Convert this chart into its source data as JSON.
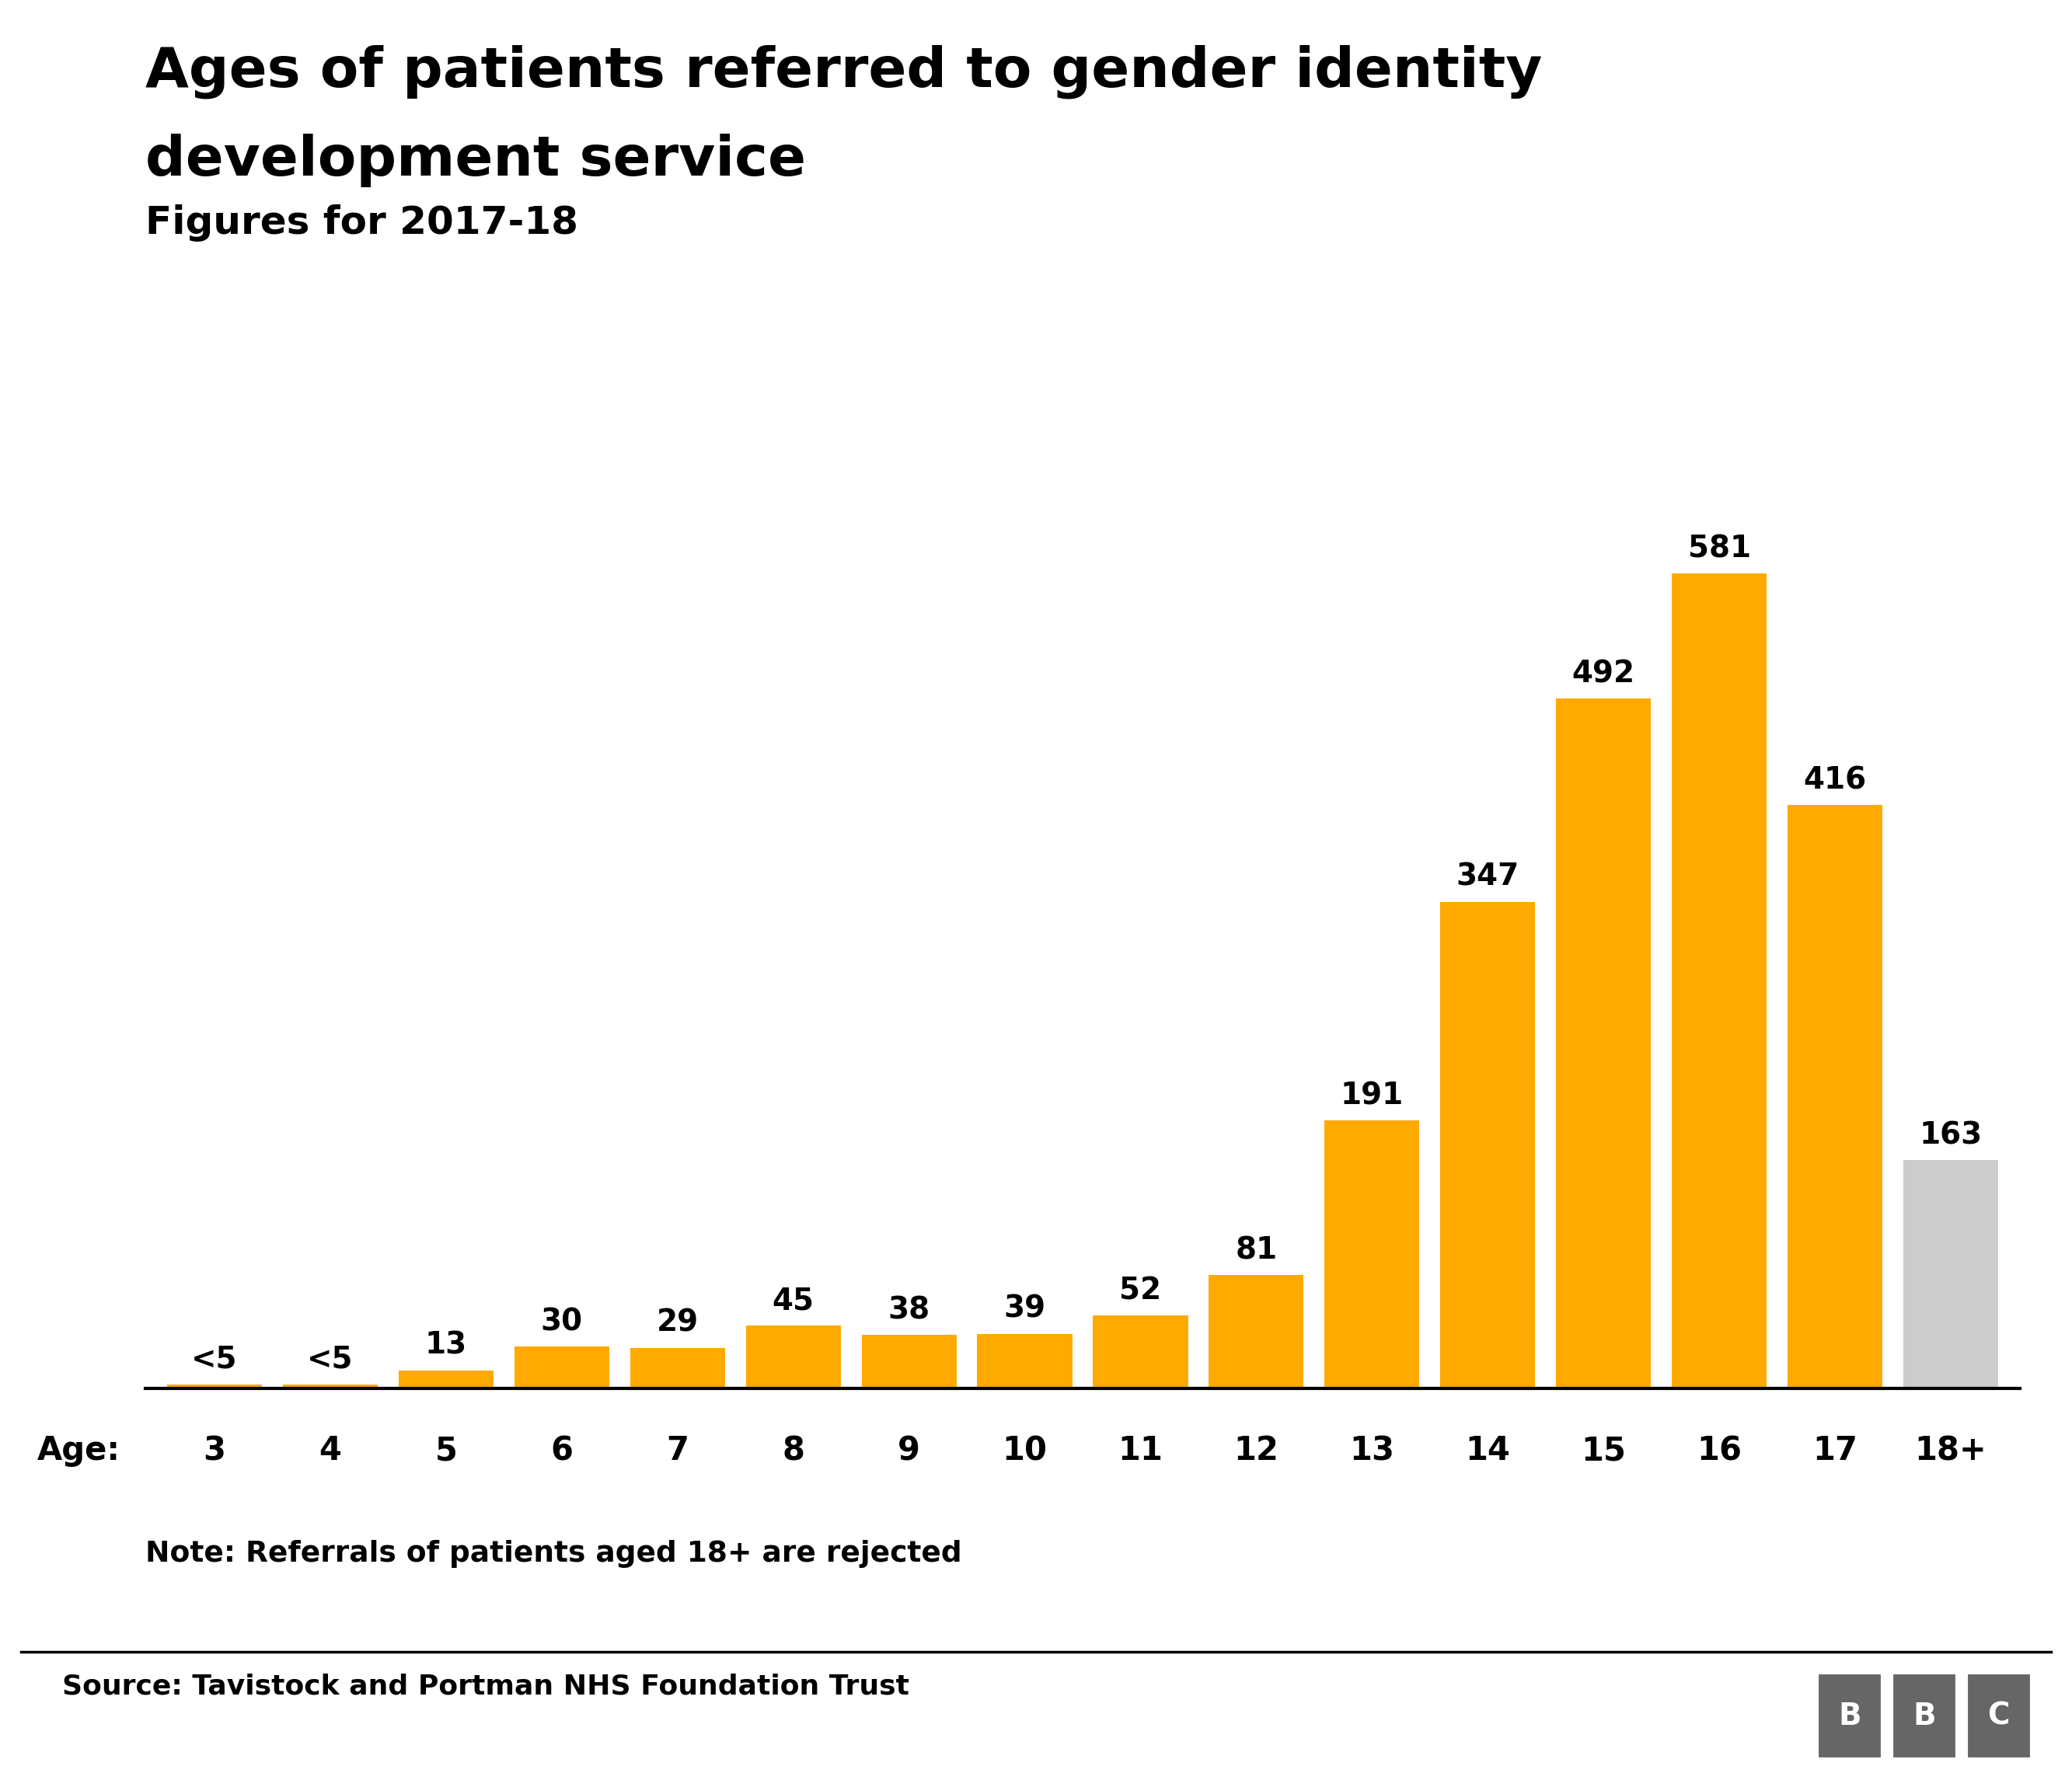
{
  "title_line1": "Ages of patients referred to gender identity",
  "title_line2": "development service",
  "subtitle": "Figures for 2017-18",
  "categories": [
    "3",
    "4",
    "5",
    "6",
    "7",
    "8",
    "9",
    "10",
    "11",
    "12",
    "13",
    "14",
    "15",
    "16",
    "17",
    "18+"
  ],
  "values": [
    3,
    3,
    13,
    30,
    29,
    45,
    38,
    39,
    52,
    81,
    191,
    347,
    492,
    581,
    416,
    163
  ],
  "labels": [
    "<5",
    "<5",
    "13",
    "30",
    "29",
    "45",
    "38",
    "39",
    "52",
    "81",
    "191",
    "347",
    "492",
    "581",
    "416",
    "163"
  ],
  "bar_colors": [
    "#FFAA00",
    "#FFAA00",
    "#FFAA00",
    "#FFAA00",
    "#FFAA00",
    "#FFAA00",
    "#FFAA00",
    "#FFAA00",
    "#FFAA00",
    "#FFAA00",
    "#FFAA00",
    "#FFAA00",
    "#FFAA00",
    "#FFAA00",
    "#FFAA00",
    "#CCCCCC"
  ],
  "background_color": "#FFFFFF",
  "title_fontsize": 52,
  "subtitle_fontsize": 36,
  "label_fontsize": 28,
  "tick_fontsize": 30,
  "note_fontsize": 27,
  "source_fontsize": 26,
  "note_text": "Note: Referrals of patients aged 18+ are rejected",
  "source_text": "Source: Tavistock and Portman NHS Foundation Trust",
  "ylim": [
    0,
    660
  ]
}
